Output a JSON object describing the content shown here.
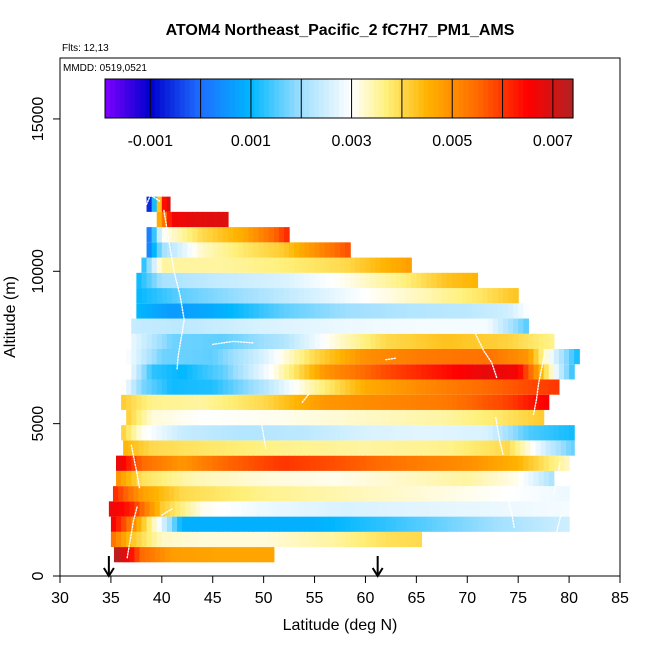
{
  "chart_data": {
    "type": "heatmap",
    "title": "ATOM4 Northeast_Pacific_2 fC7H7_PM1_AMS",
    "flights_note": "Flts: 12,13",
    "date_note": "MMDD: 0519,0521",
    "xlabel": "Latitude (deg N)",
    "ylabel": "Altitude (m)",
    "xlim": [
      30,
      85
    ],
    "ylim": [
      0,
      17000
    ],
    "x_ticks": [
      30,
      35,
      40,
      45,
      50,
      55,
      60,
      65,
      70,
      75,
      80,
      85
    ],
    "y_ticks": [
      0,
      5000,
      10000,
      15000
    ],
    "colorbar": {
      "min": -0.0019,
      "max": 0.0074,
      "ticks": [
        -0.001,
        0.001,
        0.003,
        0.005,
        0.007
      ],
      "tick_labels": [
        "-0.001",
        "0.001",
        "0.003",
        "0.005",
        "0.007"
      ],
      "palette": [
        "#7f00ff",
        "#0000cd",
        "#1e6fff",
        "#00b7ff",
        "#9fdfff",
        "#ffffff",
        "#fff07a",
        "#ffb300",
        "#ff6a00",
        "#ff0000",
        "#b22222"
      ],
      "palette_stops": [
        -0.0019,
        -0.001,
        0.0,
        0.001,
        0.002,
        0.003,
        0.0037,
        0.0045,
        0.0055,
        0.0065,
        0.0074
      ]
    },
    "markers": [
      {
        "label": "flight-marker-1",
        "latitude": 34.8
      },
      {
        "label": "flight-marker-2",
        "latitude": 61.2
      }
    ],
    "rows": [
      {
        "alt": 700,
        "lat_start": 35.3,
        "lat_end": 51.0,
        "points": [
          [
            35.3,
            0.0074
          ],
          [
            36.5,
            0.0068
          ],
          [
            38,
            0.0055
          ],
          [
            41,
            0.0048
          ],
          [
            46,
            0.0047
          ],
          [
            51,
            0.0047
          ]
        ]
      },
      {
        "alt": 1200,
        "lat_start": 35.0,
        "lat_end": 65.5,
        "points": [
          [
            35,
            0.0055
          ],
          [
            37,
            0.0043
          ],
          [
            40,
            0.0033
          ],
          [
            44,
            0.0032
          ],
          [
            50,
            0.0032
          ],
          [
            57,
            0.0035
          ],
          [
            62,
            0.0039
          ],
          [
            65.5,
            0.004
          ]
        ]
      },
      {
        "alt": 1700,
        "lat_start": 35.0,
        "lat_end": 80.0,
        "points": [
          [
            35,
            0.0068
          ],
          [
            37,
            0.0052
          ],
          [
            40,
            0.0027
          ],
          [
            42,
            0.0009
          ],
          [
            48,
            0.0009
          ],
          [
            55,
            0.0009
          ],
          [
            62,
            0.0013
          ],
          [
            68,
            0.0017
          ],
          [
            74,
            0.0021
          ],
          [
            80,
            0.0025
          ]
        ]
      },
      {
        "alt": 2200,
        "lat_start": 34.8,
        "lat_end": 80.0,
        "points": [
          [
            34.8,
            0.0068
          ],
          [
            37,
            0.0062
          ],
          [
            40,
            0.0042
          ],
          [
            44,
            0.0031
          ],
          [
            50,
            0.0028
          ],
          [
            58,
            0.0026
          ],
          [
            66,
            0.0027
          ],
          [
            74,
            0.0028
          ],
          [
            80,
            0.0029
          ]
        ]
      },
      {
        "alt": 2700,
        "lat_start": 35.2,
        "lat_end": 80.0,
        "points": [
          [
            35.2,
            0.0062
          ],
          [
            38,
            0.0048
          ],
          [
            42,
            0.004
          ],
          [
            50,
            0.0036
          ],
          [
            58,
            0.0034
          ],
          [
            66,
            0.0032
          ],
          [
            74,
            0.003
          ],
          [
            80,
            0.0028
          ]
        ]
      },
      {
        "alt": 3200,
        "lat_start": 35.5,
        "lat_end": 78.5,
        "points": [
          [
            35.5,
            0.005
          ],
          [
            38,
            0.0039
          ],
          [
            43,
            0.0034
          ],
          [
            50,
            0.0032
          ],
          [
            57,
            0.0031
          ],
          [
            64,
            0.0033
          ],
          [
            70,
            0.0035
          ],
          [
            75,
            0.0031
          ],
          [
            78.5,
            0.0021
          ]
        ]
      },
      {
        "alt": 3700,
        "lat_start": 35.5,
        "lat_end": 80.0,
        "points": [
          [
            35.5,
            0.0069
          ],
          [
            38,
            0.0055
          ],
          [
            42,
            0.0049
          ],
          [
            46,
            0.0055
          ],
          [
            52,
            0.006
          ],
          [
            58,
            0.0057
          ],
          [
            64,
            0.0053
          ],
          [
            70,
            0.005
          ],
          [
            75,
            0.0045
          ],
          [
            80,
            0.0033
          ]
        ]
      },
      {
        "alt": 4200,
        "lat_start": 36.2,
        "lat_end": 80.5,
        "points": [
          [
            36.2,
            0.0045
          ],
          [
            39,
            0.004
          ],
          [
            45,
            0.0038
          ],
          [
            52,
            0.0036
          ],
          [
            60,
            0.0035
          ],
          [
            68,
            0.0036
          ],
          [
            74,
            0.004
          ],
          [
            78,
            0.0024
          ],
          [
            80.5,
            0.0016
          ]
        ]
      },
      {
        "alt": 4700,
        "lat_start": 36.0,
        "lat_end": 80.5,
        "points": [
          [
            36,
            0.0042
          ],
          [
            38,
            0.0031
          ],
          [
            42,
            0.0024
          ],
          [
            48,
            0.0022
          ],
          [
            54,
            0.0023
          ],
          [
            60,
            0.0026
          ],
          [
            66,
            0.0027
          ],
          [
            72,
            0.0026
          ],
          [
            76,
            0.0015
          ],
          [
            80.5,
            0.0011
          ]
        ]
      },
      {
        "alt": 5200,
        "lat_start": 36.5,
        "lat_end": 77.5,
        "points": [
          [
            36.5,
            0.0042
          ],
          [
            39,
            0.0032
          ],
          [
            44,
            0.003
          ],
          [
            52,
            0.0031
          ],
          [
            60,
            0.0033
          ],
          [
            68,
            0.0035
          ],
          [
            73,
            0.0038
          ],
          [
            77.5,
            0.0042
          ]
        ]
      },
      {
        "alt": 5700,
        "lat_start": 36.0,
        "lat_end": 78.0,
        "points": [
          [
            36,
            0.0042
          ],
          [
            39,
            0.0036
          ],
          [
            44,
            0.0035
          ],
          [
            50,
            0.004
          ],
          [
            56,
            0.0049
          ],
          [
            62,
            0.0051
          ],
          [
            68,
            0.0053
          ],
          [
            74,
            0.0059
          ],
          [
            78,
            0.0066
          ]
        ]
      },
      {
        "alt": 6200,
        "lat_start": 36.0,
        "lat_end": 79.0,
        "points": [
          [
            36,
            0.0032
          ],
          [
            38,
            0.0018
          ],
          [
            41,
            0.0011
          ],
          [
            45,
            0.0012
          ],
          [
            50,
            0.0022
          ],
          [
            55,
            0.0035
          ],
          [
            60,
            0.0046
          ],
          [
            66,
            0.0051
          ],
          [
            72,
            0.0055
          ],
          [
            76,
            0.0058
          ],
          [
            79,
            0.006
          ]
        ]
      },
      {
        "alt": 6700,
        "lat_start": 36.5,
        "lat_end": 80.5,
        "points": [
          [
            36.5,
            0.0032
          ],
          [
            39,
            0.0013
          ],
          [
            42,
            0.001
          ],
          [
            46,
            0.0016
          ],
          [
            51,
            0.0031
          ],
          [
            56,
            0.0049
          ],
          [
            62,
            0.0058
          ],
          [
            68,
            0.0064
          ],
          [
            72,
            0.0068
          ],
          [
            75,
            0.0066
          ],
          [
            77,
            0.0047
          ],
          [
            79,
            0.0025
          ],
          [
            80.5,
            0.0012
          ]
        ]
      },
      {
        "alt": 7200,
        "lat_start": 36.5,
        "lat_end": 81.0,
        "points": [
          [
            36.5,
            0.003
          ],
          [
            40,
            0.0017
          ],
          [
            45,
            0.0016
          ],
          [
            50,
            0.0026
          ],
          [
            55,
            0.004
          ],
          [
            60,
            0.005
          ],
          [
            66,
            0.0053
          ],
          [
            72,
            0.0054
          ],
          [
            76,
            0.0049
          ],
          [
            78,
            0.003
          ],
          [
            81,
            0.001
          ]
        ]
      },
      {
        "alt": 7700,
        "lat_start": 37.0,
        "lat_end": 78.5,
        "points": [
          [
            37,
            0.0028
          ],
          [
            41,
            0.0017
          ],
          [
            46,
            0.0016
          ],
          [
            52,
            0.0022
          ],
          [
            57,
            0.0032
          ],
          [
            62,
            0.004
          ],
          [
            68,
            0.0043
          ],
          [
            74,
            0.0041
          ],
          [
            78.5,
            0.0036
          ]
        ]
      },
      {
        "alt": 8200,
        "lat_start": 37.0,
        "lat_end": 76.0,
        "points": [
          [
            37,
            0.0024
          ],
          [
            42,
            0.0023
          ],
          [
            50,
            0.0026
          ],
          [
            58,
            0.0028
          ],
          [
            66,
            0.0029
          ],
          [
            72,
            0.0029
          ],
          [
            76,
            0.0015
          ]
        ]
      },
      {
        "alt": 8700,
        "lat_start": 37.5,
        "lat_end": 76.0,
        "points": [
          [
            37.5,
            0.001
          ],
          [
            41,
            0.0006
          ],
          [
            46,
            0.0009
          ],
          [
            52,
            0.0016
          ],
          [
            58,
            0.002
          ],
          [
            64,
            0.0022
          ],
          [
            70,
            0.0023
          ],
          [
            74,
            0.0025
          ],
          [
            76,
            0.003
          ]
        ]
      },
      {
        "alt": 9200,
        "lat_start": 37.5,
        "lat_end": 75.0,
        "points": [
          [
            37.5,
            0.001
          ],
          [
            42,
            0.0016
          ],
          [
            48,
            0.002
          ],
          [
            54,
            0.0025
          ],
          [
            60,
            0.003
          ],
          [
            66,
            0.0034
          ],
          [
            71,
            0.0038
          ],
          [
            75,
            0.0043
          ]
        ]
      },
      {
        "alt": 9700,
        "lat_start": 37.5,
        "lat_end": 71.0,
        "points": [
          [
            37.5,
            0.001
          ],
          [
            40,
            0.0021
          ],
          [
            46,
            0.0024
          ],
          [
            52,
            0.0026
          ],
          [
            58,
            0.0031
          ],
          [
            64,
            0.0037
          ],
          [
            68,
            0.0043
          ],
          [
            71,
            0.0045
          ]
        ]
      },
      {
        "alt": 10200,
        "lat_start": 38.0,
        "lat_end": 64.5,
        "points": [
          [
            38,
            0.001
          ],
          [
            40,
            0.0035
          ],
          [
            46,
            0.0035
          ],
          [
            52,
            0.0037
          ],
          [
            58,
            0.004
          ],
          [
            62,
            0.0045
          ],
          [
            64.5,
            0.0048
          ]
        ]
      },
      {
        "alt": 10700,
        "lat_start": 38.5,
        "lat_end": 58.5,
        "points": [
          [
            38.5,
            0.0
          ],
          [
            40,
            0.002
          ],
          [
            44,
            0.0033
          ],
          [
            48,
            0.0038
          ],
          [
            52,
            0.0042
          ],
          [
            56,
            0.0052
          ],
          [
            58.5,
            0.0058
          ]
        ]
      },
      {
        "alt": 11200,
        "lat_start": 38.5,
        "lat_end": 52.5,
        "points": [
          [
            38.5,
            -0.0003
          ],
          [
            40,
            0.003
          ],
          [
            44,
            0.004
          ],
          [
            48,
            0.0046
          ],
          [
            51,
            0.0055
          ],
          [
            52.5,
            0.0062
          ]
        ]
      },
      {
        "alt": 11700,
        "lat_start": 39.5,
        "lat_end": 46.5,
        "points": [
          [
            39.5,
            0.0042
          ],
          [
            41,
            0.0066
          ],
          [
            43,
            0.0068
          ],
          [
            46.5,
            0.0069
          ]
        ]
      },
      {
        "alt": 12200,
        "lat_start": 38.5,
        "lat_end": 40.8,
        "points": [
          [
            38.5,
            -0.0015
          ],
          [
            39.3,
            0.0013
          ],
          [
            40.0,
            0.006
          ],
          [
            40.8,
            0.0072
          ]
        ]
      }
    ],
    "flight_tracks": [
      [
        [
          37.8,
          2900
        ],
        [
          37.6,
          3300
        ],
        [
          37.3,
          3800
        ],
        [
          37.0,
          4300
        ]
      ],
      [
        [
          36.6,
          600
        ],
        [
          36.9,
          1200
        ],
        [
          37.2,
          1800
        ],
        [
          37.6,
          2300
        ]
      ],
      [
        [
          40.0,
          2000
        ],
        [
          40.5,
          2100
        ],
        [
          41.0,
          2200
        ]
      ],
      [
        [
          41.5,
          6800
        ],
        [
          41.6,
          7200
        ],
        [
          41.8,
          7600
        ],
        [
          42.0,
          8000
        ],
        [
          42.2,
          8400
        ],
        [
          41.8,
          9200
        ],
        [
          41.2,
          10000
        ],
        [
          40.7,
          11000
        ],
        [
          40.2,
          12000
        ]
      ],
      [
        [
          38.5,
          12200
        ],
        [
          38.9,
          12500
        ],
        [
          39.8,
          12300
        ]
      ],
      [
        [
          45.0,
          7600
        ],
        [
          47.0,
          7700
        ],
        [
          49.0,
          7650
        ]
      ],
      [
        [
          50.2,
          4200
        ],
        [
          50.0,
          4600
        ],
        [
          49.8,
          5000
        ]
      ],
      [
        [
          53.8,
          5700
        ],
        [
          54.5,
          6000
        ]
      ],
      [
        [
          62.0,
          7100
        ],
        [
          63.0,
          7150
        ]
      ],
      [
        [
          70.8,
          7950
        ],
        [
          71.6,
          7400
        ],
        [
          72.4,
          7000
        ],
        [
          72.9,
          6500
        ]
      ],
      [
        [
          74.6,
          1600
        ],
        [
          74.4,
          2000
        ],
        [
          74.0,
          2500
        ]
      ],
      [
        [
          73.5,
          4000
        ],
        [
          73.2,
          4400
        ],
        [
          73.0,
          4800
        ],
        [
          72.8,
          5200
        ]
      ],
      [
        [
          76.5,
          5300
        ],
        [
          76.8,
          5800
        ],
        [
          77.0,
          6300
        ],
        [
          77.3,
          6800
        ],
        [
          77.6,
          7300
        ]
      ],
      [
        [
          78.5,
          2700
        ],
        [
          78.8,
          3200
        ],
        [
          79.1,
          3700
        ]
      ],
      [
        [
          78.6,
          1200
        ],
        [
          78.9,
          1600
        ],
        [
          79.2,
          2000
        ]
      ]
    ]
  }
}
